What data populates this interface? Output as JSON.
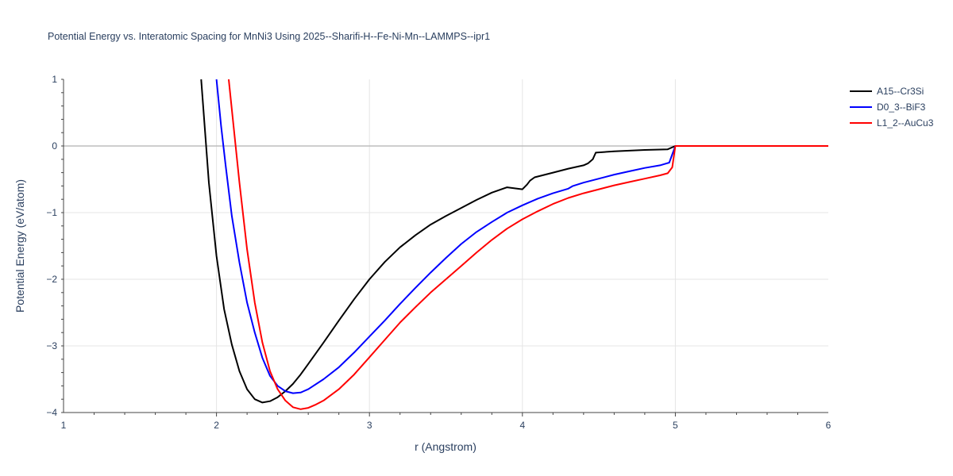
{
  "chart_data": {
    "type": "line",
    "title": "Potential Energy vs. Interatomic Spacing for MnNi3 Using 2025--Sharifi-H--Fe-Ni-Mn--LAMMPS--ipr1",
    "xlabel": "r (Angstrom)",
    "ylabel": "Potential Energy (eV/atom)",
    "xlim": [
      1,
      6
    ],
    "ylim": [
      -4,
      1
    ],
    "xticks": [
      "1",
      "2",
      "3",
      "4",
      "5",
      "6"
    ],
    "yticks": [
      "1",
      "0",
      "−1",
      "−2",
      "−3",
      "−4"
    ],
    "grid": true,
    "legend_position": "top-right",
    "series": [
      {
        "name": "A15--Cr3Si",
        "color": "#000000",
        "x": [
          1.9,
          1.95,
          2.0,
          2.05,
          2.1,
          2.15,
          2.2,
          2.25,
          2.3,
          2.35,
          2.4,
          2.45,
          2.5,
          2.55,
          2.6,
          2.7,
          2.8,
          2.9,
          3.0,
          3.1,
          3.2,
          3.3,
          3.4,
          3.5,
          3.6,
          3.7,
          3.8,
          3.9,
          4.0,
          4.03,
          4.05,
          4.08,
          4.2,
          4.3,
          4.4,
          4.43,
          4.46,
          4.48,
          4.6,
          4.7,
          4.8,
          4.95,
          5.0,
          6.0
        ],
        "y": [
          1.0,
          -0.55,
          -1.65,
          -2.45,
          -2.98,
          -3.38,
          -3.65,
          -3.8,
          -3.85,
          -3.83,
          -3.77,
          -3.68,
          -3.57,
          -3.43,
          -3.27,
          -2.95,
          -2.62,
          -2.3,
          -2.0,
          -1.74,
          -1.52,
          -1.34,
          -1.18,
          -1.05,
          -0.93,
          -0.81,
          -0.7,
          -0.62,
          -0.65,
          -0.58,
          -0.52,
          -0.47,
          -0.4,
          -0.34,
          -0.29,
          -0.26,
          -0.2,
          -0.1,
          -0.08,
          -0.07,
          -0.06,
          -0.05,
          0.0,
          0.0
        ]
      },
      {
        "name": "D0_3--BiF3",
        "color": "#0000ff",
        "x": [
          2.0,
          2.03,
          2.06,
          2.1,
          2.15,
          2.2,
          2.25,
          2.3,
          2.35,
          2.4,
          2.45,
          2.5,
          2.55,
          2.6,
          2.7,
          2.8,
          2.9,
          3.0,
          3.1,
          3.2,
          3.3,
          3.4,
          3.5,
          3.6,
          3.7,
          3.8,
          3.9,
          4.0,
          4.1,
          4.2,
          4.3,
          4.33,
          4.4,
          4.5,
          4.6,
          4.7,
          4.8,
          4.9,
          4.93,
          4.96,
          5.0,
          6.0
        ],
        "y": [
          1.0,
          0.3,
          -0.3,
          -1.05,
          -1.75,
          -2.35,
          -2.8,
          -3.18,
          -3.45,
          -3.6,
          -3.68,
          -3.71,
          -3.7,
          -3.65,
          -3.5,
          -3.32,
          -3.1,
          -2.86,
          -2.62,
          -2.37,
          -2.13,
          -1.9,
          -1.68,
          -1.47,
          -1.29,
          -1.14,
          -1.0,
          -0.89,
          -0.79,
          -0.71,
          -0.64,
          -0.6,
          -0.55,
          -0.49,
          -0.43,
          -0.38,
          -0.33,
          -0.29,
          -0.27,
          -0.25,
          0.0,
          0.0
        ]
      },
      {
        "name": "L1_2--AuCu3",
        "color": "#ff0000",
        "x": [
          2.08,
          2.1,
          2.15,
          2.2,
          2.25,
          2.3,
          2.35,
          2.4,
          2.45,
          2.5,
          2.55,
          2.6,
          2.65,
          2.7,
          2.8,
          2.9,
          3.0,
          3.1,
          3.2,
          3.3,
          3.4,
          3.5,
          3.6,
          3.7,
          3.8,
          3.9,
          4.0,
          4.1,
          4.2,
          4.3,
          4.4,
          4.5,
          4.6,
          4.7,
          4.8,
          4.9,
          4.95,
          4.98,
          5.0,
          6.0
        ],
        "y": [
          1.0,
          0.55,
          -0.55,
          -1.55,
          -2.35,
          -2.95,
          -3.38,
          -3.65,
          -3.82,
          -3.92,
          -3.95,
          -3.93,
          -3.88,
          -3.82,
          -3.65,
          -3.43,
          -3.17,
          -2.91,
          -2.65,
          -2.42,
          -2.2,
          -2.0,
          -1.8,
          -1.6,
          -1.41,
          -1.24,
          -1.1,
          -0.98,
          -0.87,
          -0.78,
          -0.71,
          -0.65,
          -0.59,
          -0.54,
          -0.49,
          -0.44,
          -0.41,
          -0.32,
          0.0,
          0.0
        ]
      }
    ]
  }
}
